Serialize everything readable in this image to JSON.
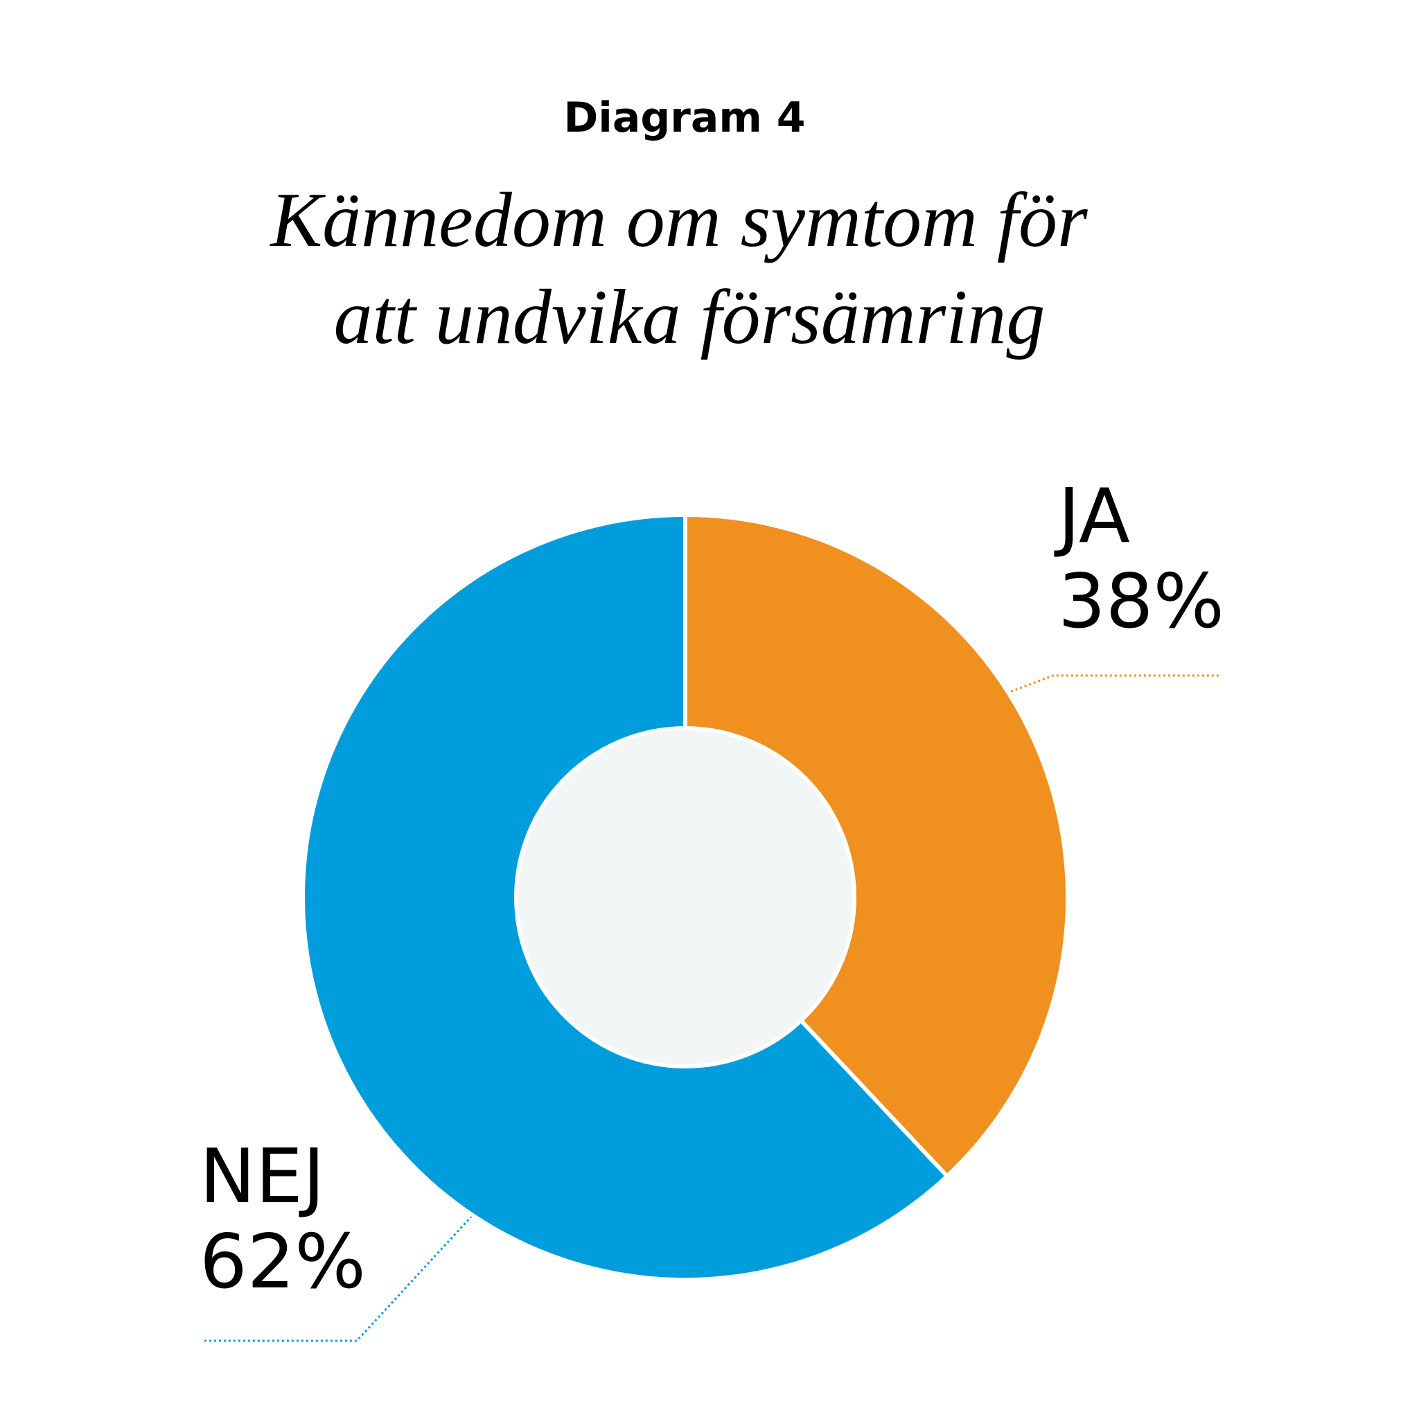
{
  "chart_data": {
    "type": "pie",
    "donut": true,
    "title": "Diagram 4",
    "subtitle": [
      "Kännedom om symtom för",
      "att undvika försämring"
    ],
    "categories": [
      "JA",
      "NEJ"
    ],
    "values": [
      38,
      62
    ],
    "value_labels": [
      "38%",
      "62%"
    ],
    "colors": [
      "#f0901e",
      "#009ddc"
    ]
  }
}
